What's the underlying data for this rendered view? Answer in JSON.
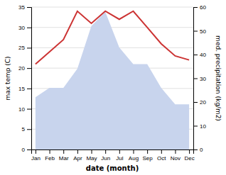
{
  "chart_data": {
    "type": "line",
    "categories": [
      "Jan",
      "Feb",
      "Mar",
      "Apr",
      "May",
      "Jun",
      "Jul",
      "Aug",
      "Sep",
      "Oct",
      "Nov",
      "Dec"
    ],
    "series": [
      {
        "type": "area",
        "axis": "y2",
        "color": "#c8d4ed",
        "values": [
          22,
          26,
          26,
          34,
          52,
          58,
          43,
          36,
          36,
          26,
          19,
          19
        ]
      },
      {
        "type": "line",
        "color": "#cc3333",
        "values": [
          21,
          24,
          27,
          34,
          31,
          34,
          32,
          34,
          30,
          26,
          23,
          22
        ]
      }
    ],
    "xlabel": "date (month)",
    "ylabel": "max temp (C)",
    "y2label": "med. precipitation (kg/m2)",
    "ylim": [
      0,
      35
    ],
    "yticks": [
      0,
      5,
      10,
      15,
      20,
      25,
      30,
      35
    ],
    "y2lim": [
      0,
      60
    ],
    "y2ticks": [
      0,
      10,
      20,
      30,
      40,
      50,
      60
    ],
    "grid": true
  }
}
